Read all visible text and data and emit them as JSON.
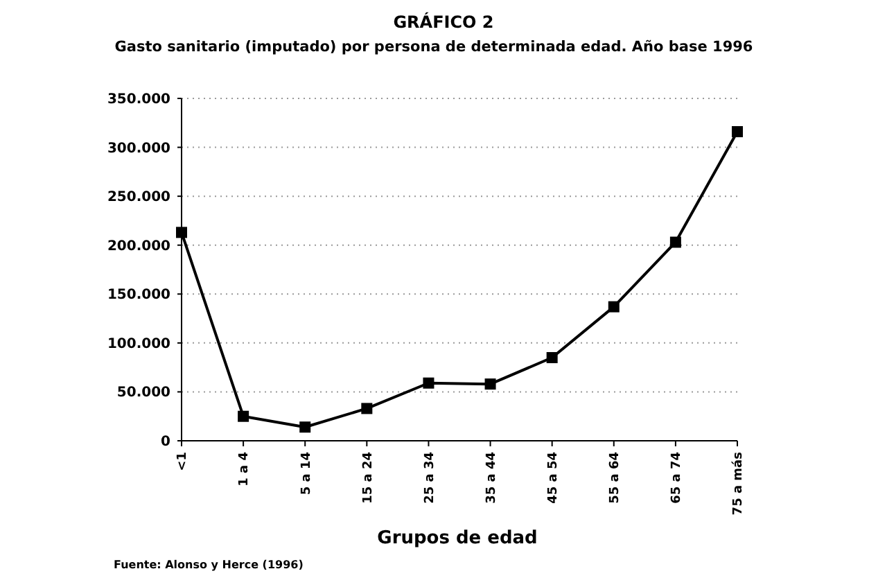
{
  "chart_data": {
    "type": "line",
    "title": "GRÁFICO 2",
    "subtitle": "Gasto sanitario (imputado) por persona de determinada edad. Año base 1996",
    "xlabel": "Grupos de edad",
    "annotations": [
      "Fuente: Alonso y Herce (1996)"
    ],
    "categories": [
      "<1",
      "1 a 4",
      "5 a 14",
      "15 a 24",
      "25 a 34",
      "35 a 44",
      "45 a 54",
      "55 a 64",
      "65 a 74",
      "75 a más"
    ],
    "series": [
      {
        "color": "#000000",
        "values": [
          213000,
          25000,
          14000,
          33000,
          59000,
          58000,
          85000,
          137000,
          203000,
          316000
        ]
      }
    ],
    "ylim": [
      0,
      350000
    ],
    "yticks": [
      {
        "value": 0,
        "label": "0"
      },
      {
        "value": 50000,
        "label": "50.000"
      },
      {
        "value": 100000,
        "label": "100.000"
      },
      {
        "value": 150000,
        "label": "150.000"
      },
      {
        "value": 200000,
        "label": "200.000"
      },
      {
        "value": 250000,
        "label": "250.000"
      },
      {
        "value": 300000,
        "label": "300.000"
      },
      {
        "value": 350000,
        "label": "350.000"
      }
    ],
    "grid": "y",
    "marker": "square",
    "line_style": "solid"
  }
}
